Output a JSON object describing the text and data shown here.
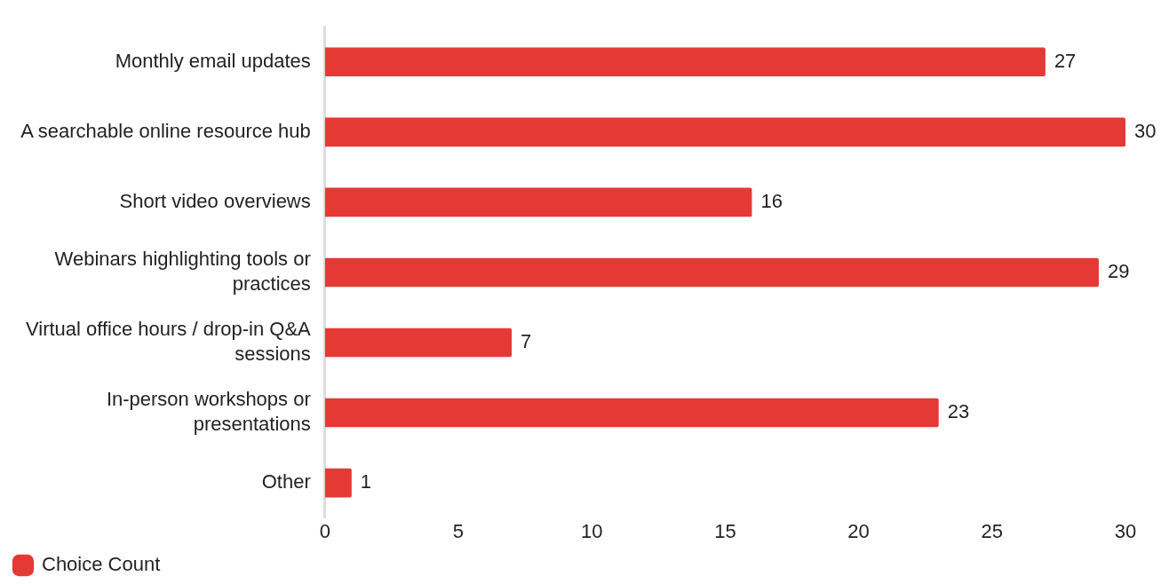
{
  "chart_data": {
    "type": "bar",
    "orientation": "horizontal",
    "categories": [
      "Monthly email updates",
      "A searchable online resource hub",
      "Short video overviews",
      "Webinars highlighting tools or practices",
      "Virtual office hours / drop-in Q&A sessions",
      "In-person workshops or presentations",
      "Other"
    ],
    "series": [
      {
        "name": "Choice Count",
        "color": "#e53935",
        "values": [
          27,
          30,
          16,
          29,
          7,
          23,
          1
        ]
      }
    ],
    "xlim": [
      0,
      30
    ],
    "xticks": [
      0,
      5,
      10,
      15,
      20,
      25,
      30
    ],
    "grid": false,
    "legend": "bottom left",
    "data_labels": true
  }
}
